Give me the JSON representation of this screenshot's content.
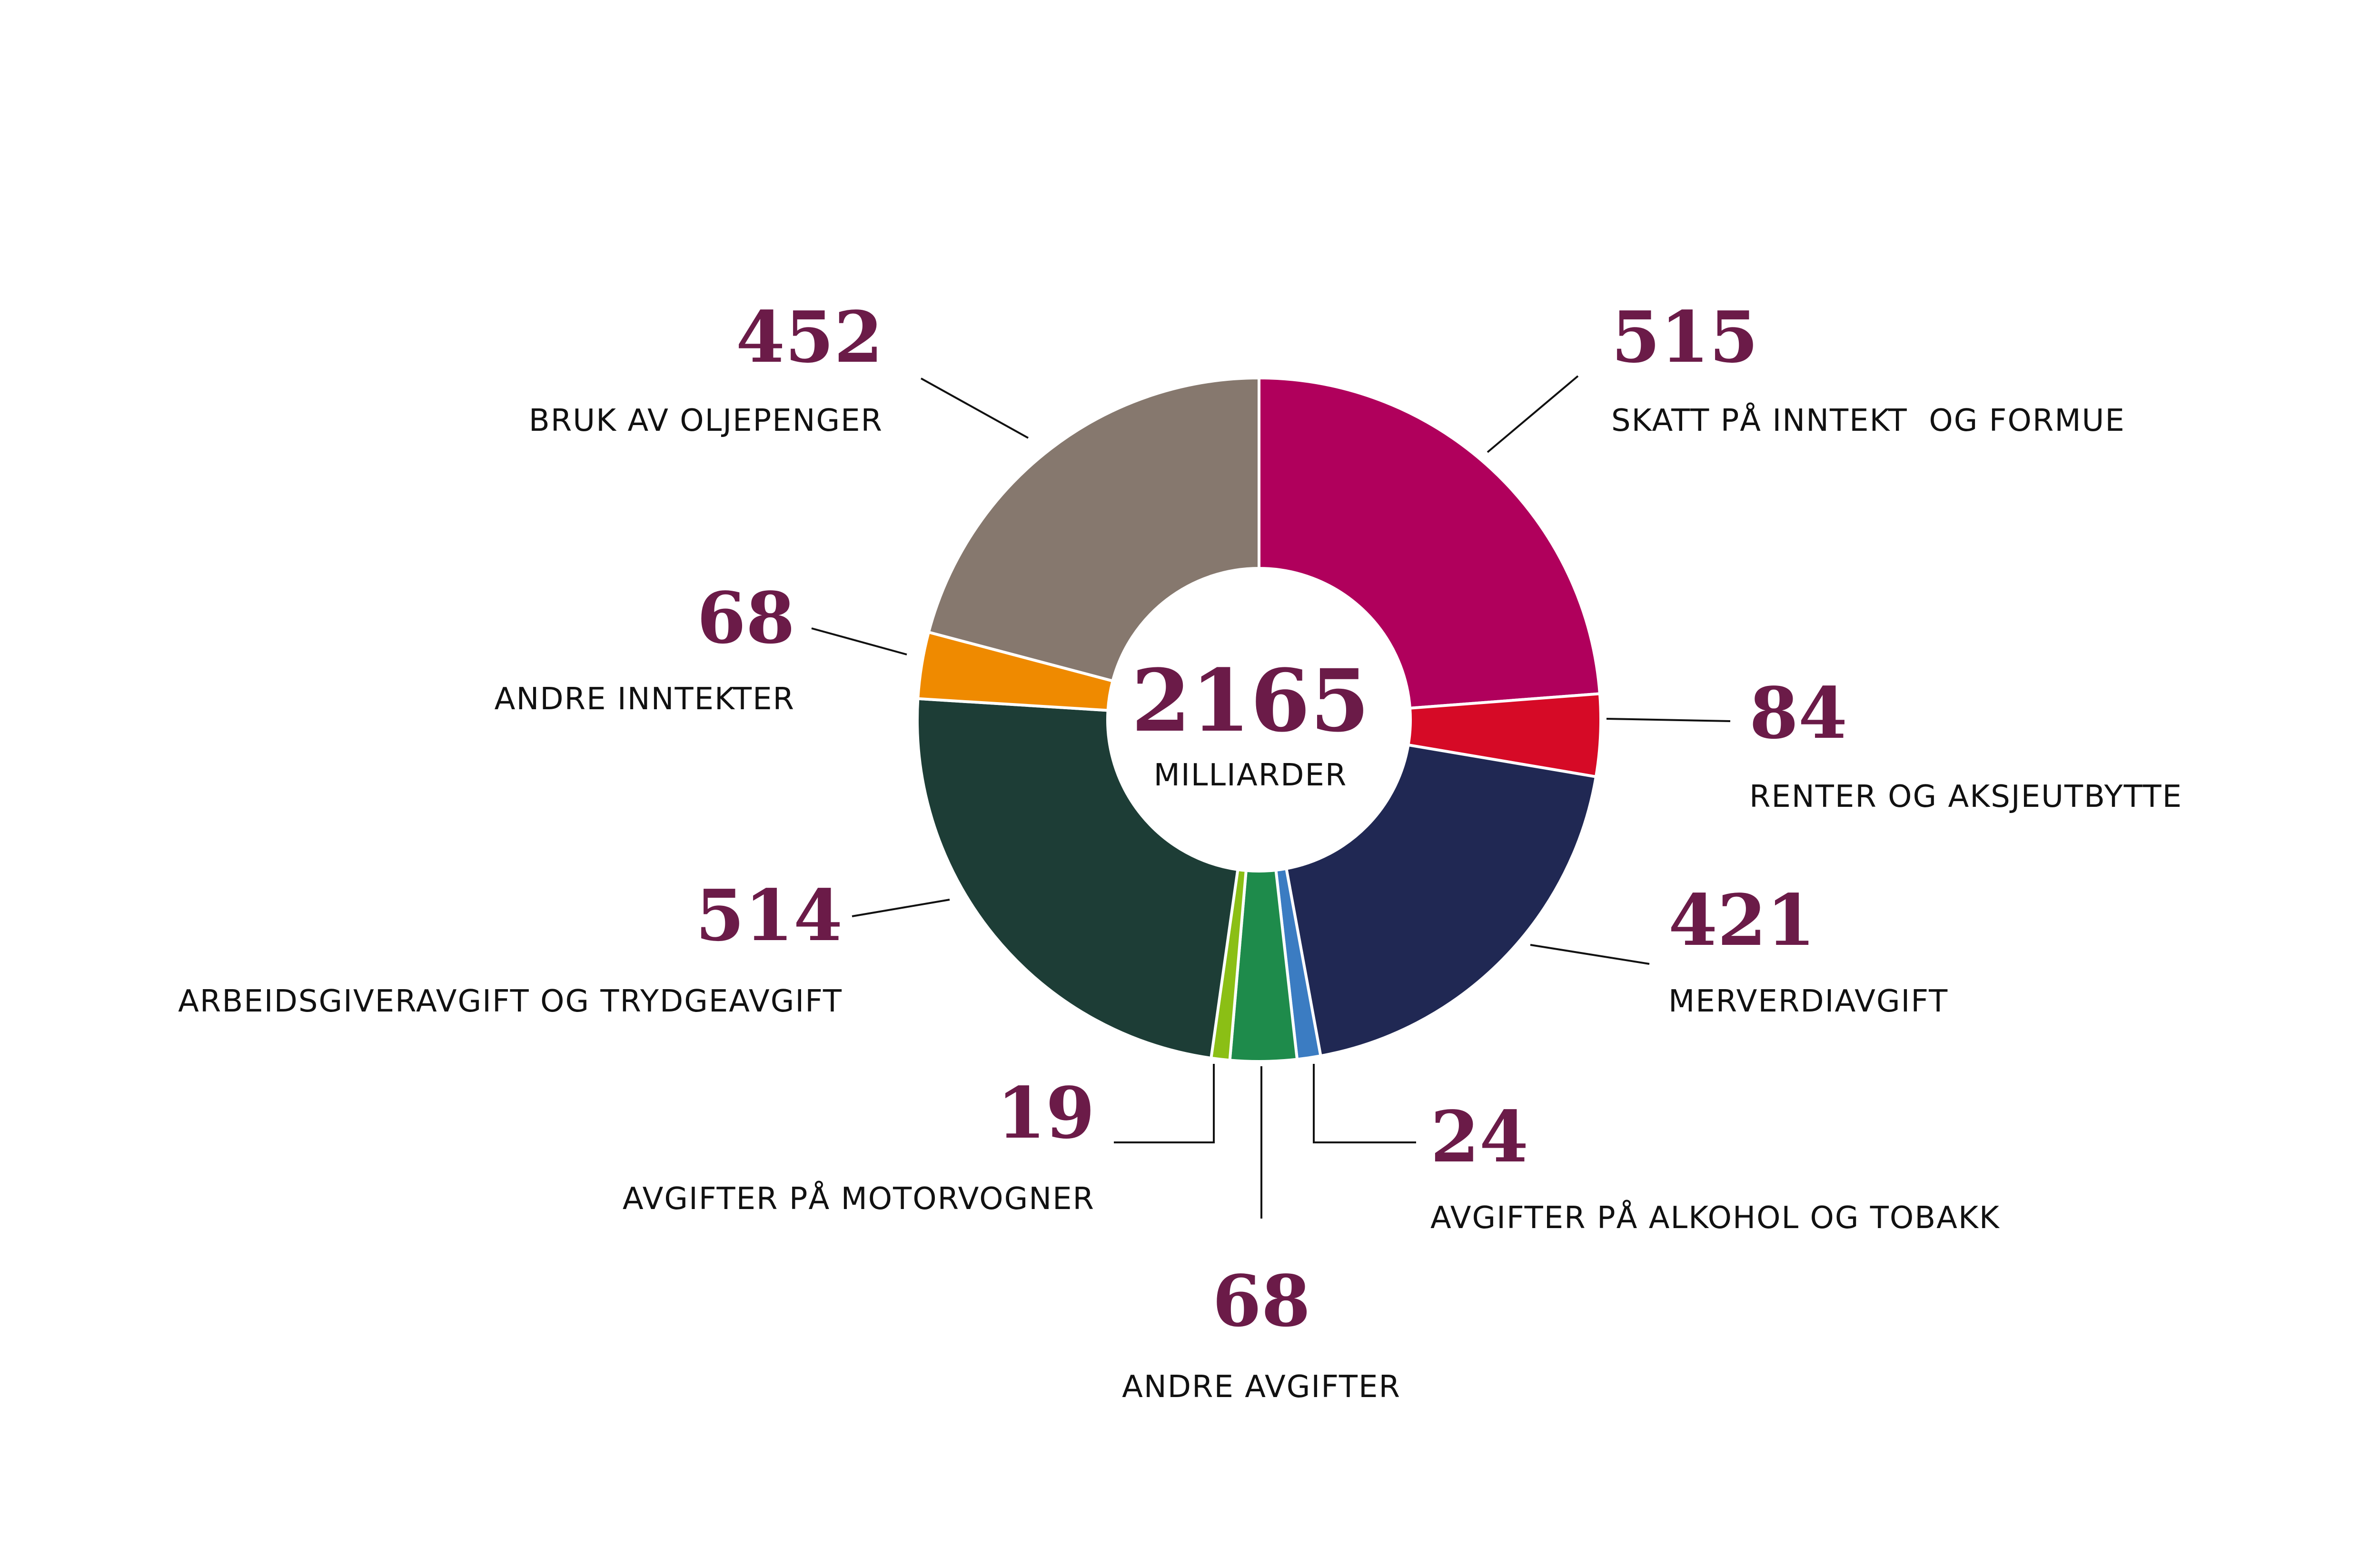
{
  "chart_data": {
    "type": "pie",
    "variant": "donut",
    "total": {
      "value": "2165",
      "unit": "MILLIARDER"
    },
    "slices": [
      {
        "label": "SKATT PÅ INNTEKT  OG FORMUE",
        "value": 515,
        "color": "#b0005c"
      },
      {
        "label": "RENTER OG AKSJEUTBYTTE",
        "value": 84,
        "color": "#d60a26"
      },
      {
        "label": "MERVERDIAVGIFT",
        "value": 421,
        "color": "#202853"
      },
      {
        "label": "AVGIFTER PÅ ALKOHOL OG TOBAKK",
        "value": 24,
        "color": "#3b7cc2"
      },
      {
        "label": "ANDRE AVGIFTER",
        "value": 68,
        "color": "#1e8b4b"
      },
      {
        "label": "AVGIFTER PÅ MOTORVOGNER",
        "value": 19,
        "color": "#8bbf15"
      },
      {
        "label": "ARBEIDSGIVERAVGIFT OG TRYDGEAVGIFT",
        "value": 514,
        "color": "#1d3d36"
      },
      {
        "label": "ANDRE INNTEKTER",
        "value": 68,
        "color": "#ef8a00"
      },
      {
        "label": "BRUK AV OLJEPENGER",
        "value": 452,
        "color": "#86786e"
      }
    ]
  }
}
